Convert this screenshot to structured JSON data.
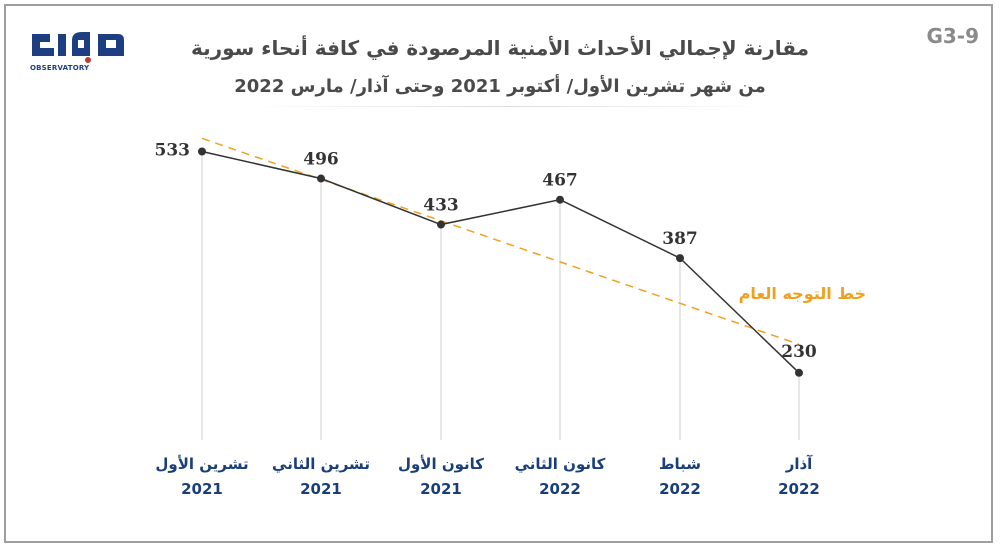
{
  "code": "G3-9",
  "title": {
    "line1": "مقارنة لإجمالي الأحداث الأمنية المرصودة في كافة أنحاء سورية",
    "line2": "من شهر تشرين الأول/ أكتوبر 2021 وحتى آذار/ مارس 2022"
  },
  "logo": {
    "name": "مرصد",
    "sub": "OBSERVATORY"
  },
  "colors": {
    "line": "#333333",
    "trend": "#f0a020",
    "axis_label": "#1a3e7a",
    "grid": "#cfcfcf",
    "logo": "#1d3f82"
  },
  "trend_label": "خط التوجه العام",
  "chart_data": {
    "type": "line",
    "title": "مقارنة لإجمالي الأحداث الأمنية المرصودة في كافة أنحاء سورية",
    "subtitle": "من شهر تشرين الأول/ أكتوبر 2021 وحتى آذار/ مارس 2022",
    "categories": [
      {
        "month": "تشرين الأول",
        "year": "2021"
      },
      {
        "month": "تشرين الثاني",
        "year": "2021"
      },
      {
        "month": "كانون الأول",
        "year": "2021"
      },
      {
        "month": "كانون الثاني",
        "year": "2022"
      },
      {
        "month": "شباط",
        "year": "2022"
      },
      {
        "month": "آذار",
        "year": "2022"
      }
    ],
    "series": [
      {
        "name": "الأحداث الأمنية",
        "values": [
          533,
          496,
          433,
          467,
          387,
          230
        ]
      }
    ],
    "trendline": {
      "name": "خط التوجه العام",
      "start": 551,
      "end": 269
    },
    "ylim": [
      0,
      600
    ],
    "grid": "vertical",
    "xlabel": "",
    "ylabel": ""
  }
}
